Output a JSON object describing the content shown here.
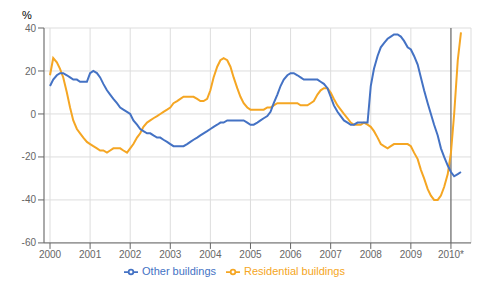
{
  "chart_data": {
    "type": "line",
    "title": "",
    "ylabel": "%",
    "x": [
      2000.0,
      2000.08,
      2000.17,
      2000.25,
      2000.33,
      2000.42,
      2000.5,
      2000.58,
      2000.67,
      2000.75,
      2000.83,
      2000.92,
      2001.0,
      2001.08,
      2001.17,
      2001.25,
      2001.33,
      2001.42,
      2001.5,
      2001.58,
      2001.67,
      2001.75,
      2001.83,
      2001.92,
      2002.0,
      2002.08,
      2002.17,
      2002.25,
      2002.33,
      2002.42,
      2002.5,
      2002.58,
      2002.67,
      2002.75,
      2002.83,
      2002.92,
      2003.0,
      2003.08,
      2003.17,
      2003.25,
      2003.33,
      2003.42,
      2003.5,
      2003.58,
      2003.67,
      2003.75,
      2003.83,
      2003.92,
      2004.0,
      2004.08,
      2004.17,
      2004.25,
      2004.33,
      2004.42,
      2004.5,
      2004.58,
      2004.67,
      2004.75,
      2004.83,
      2004.92,
      2005.0,
      2005.08,
      2005.17,
      2005.25,
      2005.33,
      2005.42,
      2005.5,
      2005.58,
      2005.67,
      2005.75,
      2005.83,
      2005.92,
      2006.0,
      2006.08,
      2006.17,
      2006.25,
      2006.33,
      2006.42,
      2006.5,
      2006.58,
      2006.67,
      2006.75,
      2006.83,
      2006.92,
      2007.0,
      2007.08,
      2007.17,
      2007.25,
      2007.33,
      2007.42,
      2007.5,
      2007.58,
      2007.67,
      2007.75,
      2007.83,
      2007.92,
      2008.0,
      2008.08,
      2008.17,
      2008.25,
      2008.33,
      2008.42,
      2008.5,
      2008.58,
      2008.67,
      2008.75,
      2008.83,
      2008.92,
      2009.0,
      2009.08,
      2009.17,
      2009.25,
      2009.33,
      2009.42,
      2009.5,
      2009.58,
      2009.67,
      2009.75,
      2009.83,
      2009.92,
      2010.0,
      2010.08,
      2010.17,
      2010.25
    ],
    "series": [
      {
        "name": "Residential buildings",
        "color": "#F5A623",
        "values": [
          18,
          26,
          24,
          21,
          17,
          10,
          3,
          -3,
          -7,
          -9,
          -11,
          -13,
          -14,
          -15,
          -16,
          -17,
          -17,
          -18,
          -17,
          -16,
          -16,
          -16,
          -17,
          -18,
          -16,
          -14,
          -11,
          -9,
          -6,
          -4,
          -3,
          -2,
          -1,
          0,
          1,
          2,
          3,
          5,
          6,
          7,
          8,
          8,
          8,
          8,
          7,
          6,
          6,
          7,
          11,
          17,
          22,
          25,
          26,
          25,
          22,
          17,
          12,
          8,
          5,
          3,
          2,
          2,
          2,
          2,
          2,
          3,
          3,
          4,
          5,
          5,
          5,
          5,
          5,
          5,
          5,
          4,
          4,
          4,
          5,
          6,
          9,
          11,
          12,
          12,
          10,
          7,
          4,
          2,
          0,
          -2,
          -4,
          -5,
          -5,
          -5,
          -4,
          -5,
          -6,
          -8,
          -11,
          -14,
          -15,
          -16,
          -15,
          -14,
          -14,
          -14,
          -14,
          -14,
          -15,
          -18,
          -21,
          -26,
          -30,
          -35,
          -38,
          -40,
          -40,
          -38,
          -34,
          -28,
          -18,
          0,
          25,
          38
        ]
      },
      {
        "name": "Other buildings",
        "color": "#4472C4",
        "values": [
          13,
          16,
          18,
          19,
          19,
          18,
          17,
          16,
          16,
          15,
          15,
          15,
          19,
          20,
          19,
          17,
          14,
          11,
          9,
          7,
          5,
          3,
          2,
          1,
          0,
          -3,
          -5,
          -7,
          -8,
          -9,
          -9,
          -10,
          -11,
          -11,
          -12,
          -13,
          -14,
          -15,
          -15,
          -15,
          -15,
          -14,
          -13,
          -12,
          -11,
          -10,
          -9,
          -8,
          -7,
          -6,
          -5,
          -4,
          -4,
          -3,
          -3,
          -3,
          -3,
          -3,
          -3,
          -4,
          -5,
          -5,
          -4,
          -3,
          -2,
          -1,
          1,
          5,
          9,
          13,
          16,
          18,
          19,
          19,
          18,
          17,
          16,
          16,
          16,
          16,
          16,
          15,
          14,
          12,
          8,
          4,
          1,
          -1,
          -3,
          -4,
          -5,
          -5,
          -4,
          -4,
          -4,
          -4,
          13,
          21,
          27,
          31,
          33,
          35,
          36,
          37,
          37,
          36,
          34,
          31,
          30,
          27,
          23,
          17,
          11,
          5,
          0,
          -5,
          -10,
          -16,
          -20,
          -24,
          -27,
          -29,
          -28,
          -27
        ]
      }
    ],
    "xlim": [
      1999.85,
      2010.5
    ],
    "xticks": [
      2000,
      2001,
      2002,
      2003,
      2004,
      2005,
      2006,
      2007,
      2008,
      2009,
      {
        "value": 2010,
        "label": "2010*"
      }
    ],
    "ylim": [
      -60,
      40
    ],
    "yticks": [
      -60,
      -40,
      -20,
      0,
      20,
      40
    ],
    "vlines": [
      2010
    ],
    "grid": true,
    "legend": "bottom"
  }
}
